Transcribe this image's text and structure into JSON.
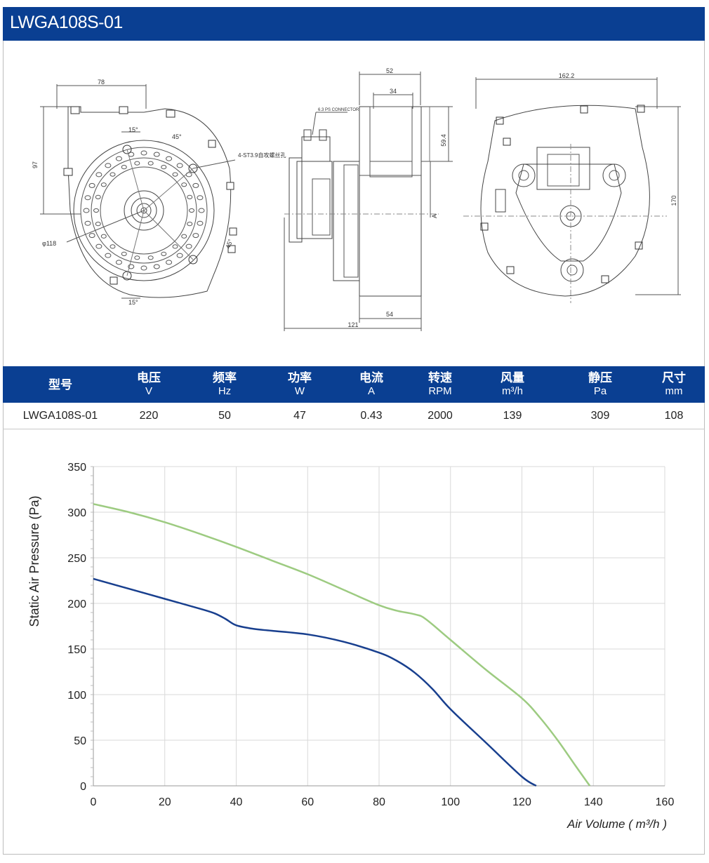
{
  "header": {
    "title": "LWGA108S-01"
  },
  "drawing": {
    "front": {
      "dim_width": "78",
      "dim_height": "97",
      "diameter": "φ118",
      "angle_top": "15°",
      "angle_top2": "45°",
      "angle_bottom": "15°",
      "angle_side": "45°",
      "screw_note": "4-ST3.9自攻螺丝孔"
    },
    "side": {
      "dim_top": "52",
      "dim_inner": "34",
      "dim_height": "59.4",
      "connector": "6.3 PS CONNECTOR",
      "section_mark": "A",
      "dim_bottom": "54",
      "dim_total": "121"
    },
    "back": {
      "dim_width": "162.2",
      "dim_height": "170"
    }
  },
  "spec_table": {
    "headers": [
      {
        "label": "型号",
        "unit": ""
      },
      {
        "label": "电压",
        "unit": "V"
      },
      {
        "label": "频率",
        "unit": "Hz"
      },
      {
        "label": "功率",
        "unit": "W"
      },
      {
        "label": "电流",
        "unit": "A"
      },
      {
        "label": "转速",
        "unit": "RPM"
      },
      {
        "label": "风量",
        "unit": "m³/h"
      },
      {
        "label": "静压",
        "unit": "Pa"
      },
      {
        "label": "尺寸",
        "unit": "mm"
      }
    ],
    "row": [
      "LWGA108S-01",
      "220",
      "50",
      "47",
      "0.43",
      "2000",
      "139",
      "309",
      "108"
    ]
  },
  "chart_data": {
    "type": "line",
    "xlabel": "Air Volume ( m³/h )",
    "ylabel": "Static Air Pressure  (Pa)",
    "xlim": [
      0,
      160
    ],
    "ylim": [
      0,
      350
    ],
    "xticks": [
      0,
      20,
      40,
      60,
      80,
      100,
      120,
      140,
      160
    ],
    "yticks": [
      0,
      50,
      100,
      150,
      200,
      250,
      300,
      350
    ],
    "grid": true,
    "series": [
      {
        "color": "#9dcb81",
        "x": [
          0,
          10,
          20,
          30,
          40,
          50,
          60,
          70,
          80,
          85,
          90,
          93,
          100,
          110,
          120,
          125,
          130,
          135,
          139
        ],
        "y": [
          309,
          300,
          289,
          276,
          262,
          247,
          232,
          215,
          198,
          192,
          188,
          183,
          160,
          127,
          96,
          75,
          50,
          22,
          0
        ]
      },
      {
        "color": "#183f8e",
        "x": [
          0,
          10,
          20,
          30,
          34,
          37,
          40,
          45,
          50,
          60,
          70,
          80,
          85,
          90,
          95,
          100,
          110,
          120,
          124
        ],
        "y": [
          227,
          216,
          205,
          194,
          189,
          183,
          176,
          172,
          170,
          166,
          158,
          146,
          137,
          124,
          106,
          84,
          47,
          10,
          0
        ]
      }
    ]
  }
}
